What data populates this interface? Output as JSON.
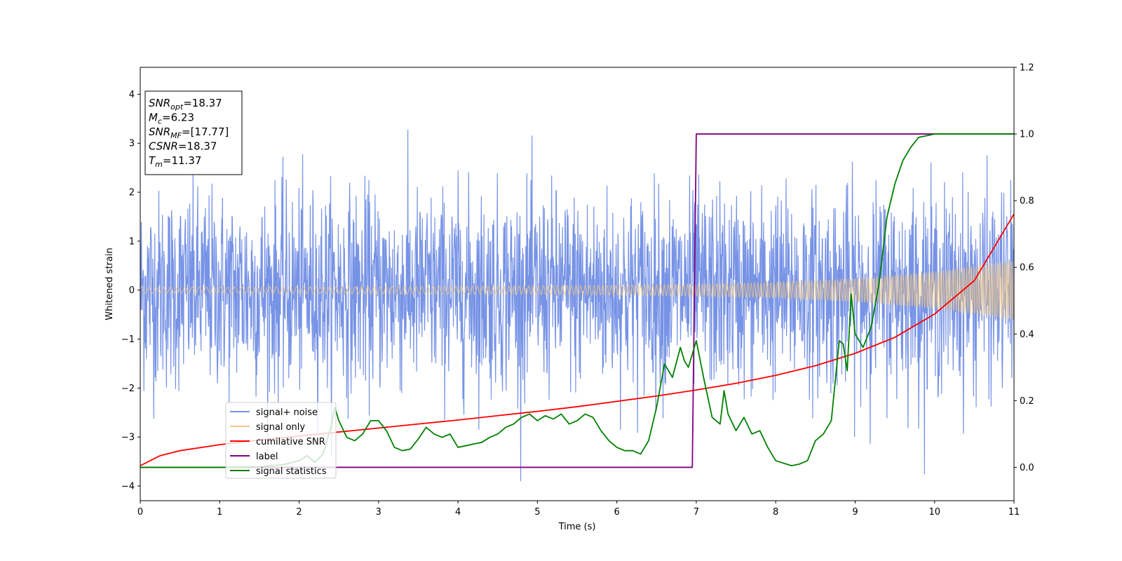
{
  "chart_data": {
    "type": "line",
    "xlabel": "Time (s)",
    "ylabel": "Whitened strain",
    "xlim": [
      0,
      11
    ],
    "ylim": [
      -4.3,
      4.55
    ],
    "y2lim": [
      -0.1,
      1.2
    ],
    "x_ticks": [
      "0",
      "1",
      "2",
      "3",
      "4",
      "5",
      "6",
      "7",
      "8",
      "9",
      "10",
      "11"
    ],
    "y_ticks": [
      "−4",
      "−3",
      "−2",
      "−1",
      "0",
      "1",
      "2",
      "3",
      "4"
    ],
    "y2_ticks": [
      "0.0",
      "0.2",
      "0.4",
      "0.6",
      "0.8",
      "1.0",
      "1.2"
    ],
    "legend_position": "lower-left",
    "annotation": [
      {
        "var": "SNR",
        "sub": "opt",
        "value": "=18.37"
      },
      {
        "var": "M",
        "sub": "c",
        "value": "=6.23"
      },
      {
        "var": "SNR",
        "sub": "MF",
        "value": "=[17.77]"
      },
      {
        "var": "CSNR",
        "sub": "",
        "value": "=18.37"
      },
      {
        "var": "T",
        "sub": "m",
        "value": "=11.37"
      }
    ],
    "series": [
      {
        "name": "signal+ noise",
        "color": "#7793e6",
        "axis": "left",
        "kind": "noise",
        "approx_std": 1.0,
        "approx_range": [
          -3.9,
          4.2
        ]
      },
      {
        "name": "signal only",
        "color": "#f5c77e",
        "axis": "left",
        "kind": "chirp",
        "amplitude_envelope": {
          "x": [
            0,
            2,
            4,
            6,
            7,
            8,
            9,
            10,
            11
          ],
          "y": [
            0.06,
            0.07,
            0.08,
            0.1,
            0.12,
            0.16,
            0.24,
            0.38,
            0.62
          ]
        }
      },
      {
        "name": "cumilative SNR",
        "color": "#ff0000",
        "axis": "right",
        "x": [
          0,
          0.25,
          0.5,
          1,
          1.5,
          2,
          2.5,
          3,
          3.5,
          4,
          4.5,
          5,
          5.5,
          6,
          6.5,
          7,
          7.5,
          8,
          8.5,
          9,
          9.5,
          10,
          10.5,
          11
        ],
        "y": [
          0.005,
          0.035,
          0.05,
          0.068,
          0.082,
          0.094,
          0.106,
          0.118,
          0.13,
          0.142,
          0.155,
          0.168,
          0.182,
          0.198,
          0.214,
          0.232,
          0.252,
          0.276,
          0.305,
          0.342,
          0.39,
          0.46,
          0.56,
          0.76
        ]
      },
      {
        "name": "label",
        "color": "#800080",
        "axis": "right",
        "x": [
          0,
          6.95,
          7.0,
          11
        ],
        "y": [
          0,
          0,
          1,
          1
        ]
      },
      {
        "name": "signal statistics",
        "color": "#008000",
        "axis": "right",
        "x": [
          0,
          0.5,
          1.0,
          1.5,
          1.8,
          2.0,
          2.1,
          2.2,
          2.3,
          2.4,
          2.45,
          2.5,
          2.6,
          2.7,
          2.8,
          2.9,
          3.0,
          3.1,
          3.2,
          3.3,
          3.4,
          3.5,
          3.6,
          3.7,
          3.8,
          3.9,
          4.0,
          4.1,
          4.2,
          4.3,
          4.4,
          4.5,
          4.6,
          4.7,
          4.8,
          4.9,
          5.0,
          5.1,
          5.2,
          5.3,
          5.4,
          5.5,
          5.6,
          5.7,
          5.8,
          5.9,
          6.0,
          6.1,
          6.2,
          6.3,
          6.4,
          6.5,
          6.6,
          6.7,
          6.8,
          6.85,
          6.9,
          6.95,
          7.0,
          7.1,
          7.2,
          7.3,
          7.35,
          7.4,
          7.5,
          7.6,
          7.7,
          7.8,
          7.9,
          8.0,
          8.2,
          8.3,
          8.4,
          8.5,
          8.6,
          8.7,
          8.8,
          8.85,
          8.9,
          8.95,
          9.0,
          9.05,
          9.1,
          9.2,
          9.3,
          9.4,
          9.5,
          9.6,
          9.7,
          9.8,
          10.0,
          10.5,
          11.0
        ],
        "y": [
          0.0,
          0.0,
          0.0,
          0.002,
          0.008,
          0.02,
          0.035,
          0.015,
          0.04,
          0.12,
          0.18,
          0.14,
          0.09,
          0.08,
          0.1,
          0.14,
          0.14,
          0.11,
          0.06,
          0.05,
          0.055,
          0.085,
          0.12,
          0.1,
          0.09,
          0.1,
          0.06,
          0.065,
          0.07,
          0.075,
          0.09,
          0.1,
          0.12,
          0.13,
          0.15,
          0.16,
          0.14,
          0.155,
          0.145,
          0.16,
          0.13,
          0.14,
          0.16,
          0.15,
          0.11,
          0.08,
          0.06,
          0.05,
          0.05,
          0.04,
          0.08,
          0.18,
          0.31,
          0.27,
          0.36,
          0.32,
          0.3,
          0.34,
          0.38,
          0.26,
          0.15,
          0.13,
          0.23,
          0.16,
          0.11,
          0.15,
          0.1,
          0.11,
          0.06,
          0.02,
          0.005,
          0.01,
          0.02,
          0.08,
          0.1,
          0.14,
          0.38,
          0.37,
          0.29,
          0.52,
          0.4,
          0.38,
          0.36,
          0.42,
          0.55,
          0.75,
          0.85,
          0.92,
          0.96,
          0.99,
          1.0,
          1.0,
          1.0
        ]
      }
    ]
  }
}
